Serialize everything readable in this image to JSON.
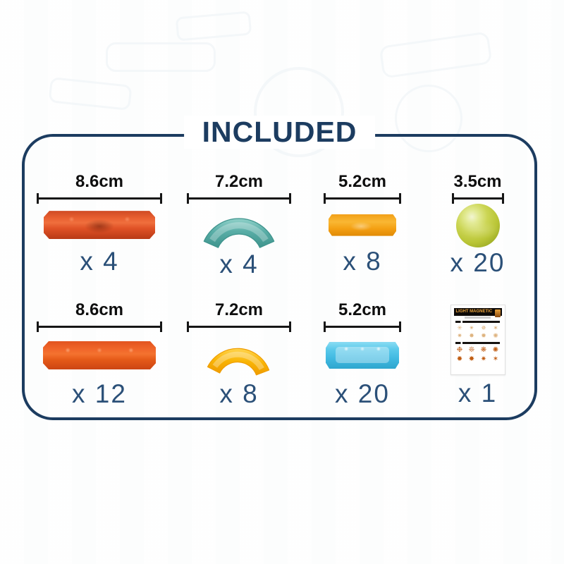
{
  "title": "INCLUDED",
  "panel": {
    "border_color": "#1c3c60",
    "count_color": "#2b5078"
  },
  "items": [
    {
      "name": "red-long-bar",
      "size": "8.6cm",
      "count": "x 4",
      "color": "#e05226"
    },
    {
      "name": "teal-curve",
      "size": "7.2cm",
      "count": "x 4",
      "color": "#58ada6"
    },
    {
      "name": "orange-short-bar",
      "size": "5.2cm",
      "count": "x 8",
      "color": "#f4a013"
    },
    {
      "name": "green-ball",
      "size": "3.5cm",
      "count": "x 20",
      "color": "#c3cc3e"
    },
    {
      "name": "orange-long-bar",
      "size": "8.6cm",
      "count": "x 12",
      "color": "#e55a19"
    },
    {
      "name": "yellow-curve",
      "size": "7.2cm",
      "count": "x 8",
      "color": "#f8b505"
    },
    {
      "name": "blue-short-bar",
      "size": "5.2cm",
      "count": "x 20",
      "color": "#41bae2"
    },
    {
      "name": "sticker-sheet",
      "count": "x 1",
      "sticker": {
        "header_title": "LIGHT MAGNETIC",
        "glyphs_faint": [
          "✳",
          "✴",
          "✵",
          "✶",
          "✷",
          "✸",
          "✹",
          "✺"
        ],
        "glyphs_bold": [
          "❉",
          "❊",
          "❋",
          "✺",
          "✹",
          "✸",
          "✷",
          "✶"
        ]
      }
    }
  ]
}
